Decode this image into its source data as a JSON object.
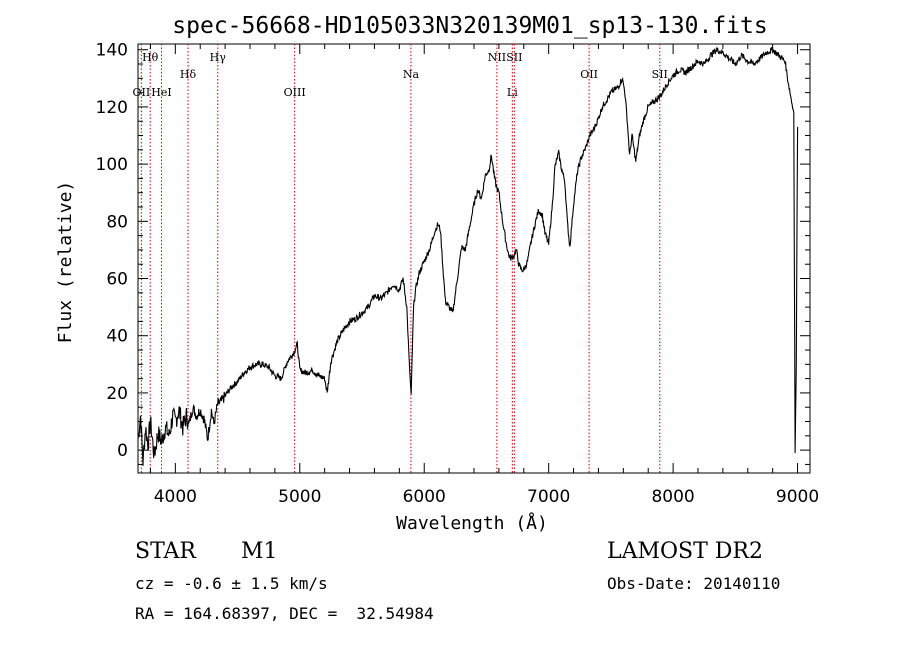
{
  "chart_data": {
    "type": "line",
    "title": "spec-56668-HD105033N320139M01_sp13-130.fits",
    "xlabel": "Wavelength (Å)",
    "ylabel": "Flux (relative)",
    "xlim": [
      3700,
      9100
    ],
    "ylim": [
      -8,
      142
    ],
    "x_ticks": [
      4000,
      5000,
      6000,
      7000,
      8000,
      9000
    ],
    "y_ticks": [
      0,
      20,
      40,
      60,
      80,
      100,
      120,
      140
    ],
    "line_color": "#000000",
    "marker_color": "#cc0000",
    "spectrum": {
      "x": [
        3700,
        3720,
        3740,
        3760,
        3780,
        3800,
        3830,
        3860,
        3890,
        3920,
        3950,
        3980,
        4000,
        4030,
        4060,
        4090,
        4110,
        4140,
        4170,
        4200,
        4230,
        4260,
        4290,
        4310,
        4340,
        4370,
        4400,
        4450,
        4500,
        4550,
        4600,
        4650,
        4700,
        4750,
        4800,
        4850,
        4900,
        4950,
        4980,
        5000,
        5050,
        5100,
        5150,
        5200,
        5220,
        5250,
        5300,
        5350,
        5400,
        5450,
        5500,
        5550,
        5600,
        5650,
        5700,
        5750,
        5800,
        5830,
        5860,
        5880,
        5895,
        5905,
        5915,
        5930,
        5960,
        6000,
        6050,
        6080,
        6110,
        6130,
        6150,
        6170,
        6200,
        6230,
        6260,
        6300,
        6330,
        6360,
        6400,
        6430,
        6460,
        6490,
        6520,
        6540,
        6565,
        6580,
        6600,
        6630,
        6660,
        6680,
        6700,
        6720,
        6740,
        6760,
        6780,
        6800,
        6830,
        6860,
        6890,
        6920,
        6950,
        6970,
        7000,
        7030,
        7050,
        7080,
        7100,
        7130,
        7150,
        7170,
        7200,
        7230,
        7260,
        7300,
        7330,
        7360,
        7400,
        7430,
        7460,
        7500,
        7530,
        7560,
        7590,
        7610,
        7630,
        7650,
        7670,
        7700,
        7730,
        7760,
        7800,
        7850,
        7900,
        7950,
        8000,
        8050,
        8100,
        8150,
        8200,
        8250,
        8300,
        8350,
        8400,
        8450,
        8500,
        8550,
        8600,
        8650,
        8700,
        8750,
        8800,
        8850,
        8900,
        8920,
        8940,
        8960,
        8970,
        8980,
        8990,
        9000
      ],
      "y": [
        4,
        12,
        -4,
        8,
        2,
        10,
        -2,
        6,
        3,
        8,
        5,
        12,
        10,
        14,
        8,
        12,
        9,
        15,
        12,
        14,
        11,
        4,
        14,
        9,
        16,
        17,
        19,
        22,
        24,
        27,
        29,
        30,
        30,
        29,
        26,
        25,
        31,
        34,
        37,
        28,
        27,
        28,
        26,
        25,
        20,
        31,
        38,
        42,
        45,
        46,
        48,
        50,
        54,
        53,
        55,
        58,
        56,
        60,
        50,
        30,
        19,
        36,
        50,
        56,
        62,
        66,
        71,
        76,
        79,
        77,
        64,
        52,
        50,
        48,
        58,
        71,
        70,
        77,
        86,
        91,
        88,
        96,
        98,
        103,
        95,
        92,
        90,
        80,
        72,
        68,
        67,
        68,
        70,
        65,
        63,
        63,
        66,
        73,
        79,
        84,
        82,
        76,
        72,
        86,
        99,
        104,
        99,
        94,
        80,
        71,
        86,
        97,
        102,
        106,
        110,
        112,
        116,
        120,
        122,
        125,
        126,
        127,
        130,
        126,
        116,
        103,
        110,
        101,
        110,
        115,
        120,
        122,
        124,
        128,
        131,
        133,
        132,
        134,
        136,
        135,
        138,
        140,
        139,
        137,
        135,
        138,
        136,
        135,
        137,
        139,
        140,
        138,
        136,
        130,
        125,
        120,
        118,
        -1,
        30,
        113
      ]
    },
    "lines": [
      {
        "label": "Hθ",
        "x": 3798,
        "row": "upper"
      },
      {
        "label": "OII",
        "x": 3727,
        "row": "lower"
      },
      {
        "label": "HeI",
        "x": 3889,
        "row": "lower"
      },
      {
        "label": "Hδ",
        "x": 4102,
        "row": "middle"
      },
      {
        "label": "Hγ",
        "x": 4341,
        "row": "upper"
      },
      {
        "label": "OIII",
        "x": 4959,
        "row": "lower"
      },
      {
        "label": "Na",
        "x": 5893,
        "row": "middle"
      },
      {
        "label": "NII",
        "x": 6584,
        "row": "upper"
      },
      {
        "label": "SII",
        "x": 6724,
        "row": "upper"
      },
      {
        "label": "Li",
        "x": 6708,
        "row": "lower"
      },
      {
        "label": "OII",
        "x": 7325,
        "row": "middle"
      },
      {
        "label": "SII",
        "x": 7893,
        "row": "middle"
      }
    ]
  },
  "info": {
    "object_class": "STAR",
    "subclass": "M1",
    "survey": "LAMOST DR2",
    "redshift": "cz = -0.6 ± 1.5 km/s",
    "obs_date": "Obs-Date: 20140110",
    "coords": "RA = 164.68397, DEC =  32.54984"
  }
}
